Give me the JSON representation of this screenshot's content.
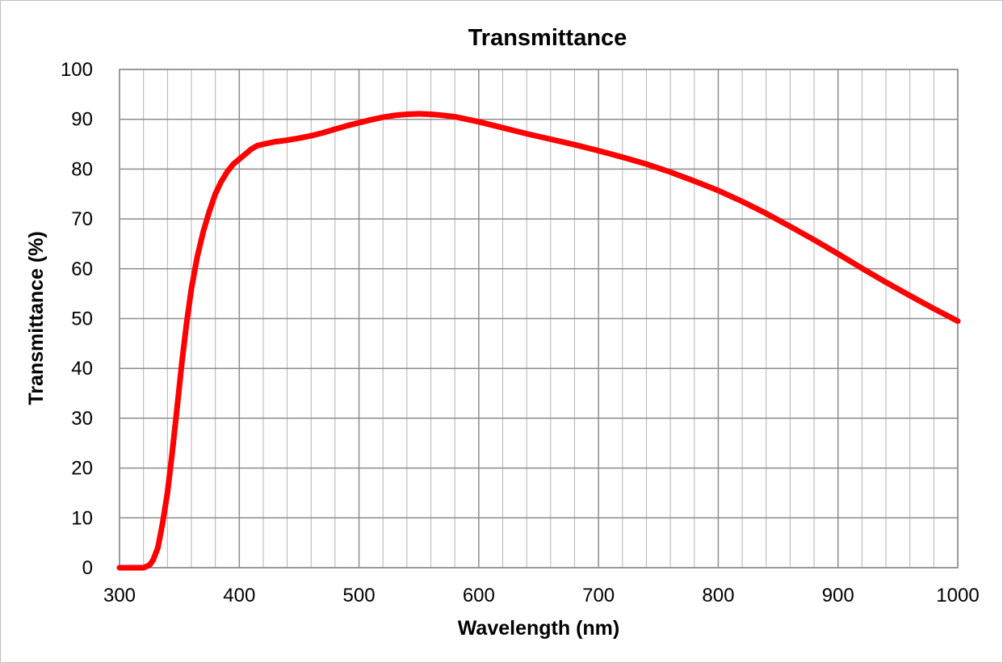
{
  "chart_data": {
    "type": "line",
    "title": "Transmittance",
    "xlabel": "Wavelength (nm)",
    "ylabel": "Transmittance (%)",
    "xlim": [
      300,
      1000
    ],
    "ylim": [
      0,
      100
    ],
    "x_major_ticks": [
      300,
      400,
      500,
      600,
      700,
      800,
      900,
      1000
    ],
    "x_tick_labels": [
      "300",
      "400",
      "500",
      "600",
      "700",
      "800",
      "900",
      "1000"
    ],
    "y_major_ticks": [
      0,
      10,
      20,
      30,
      40,
      50,
      60,
      70,
      80,
      90,
      100
    ],
    "y_tick_labels": [
      "0",
      "10",
      "20",
      "30",
      "40",
      "50",
      "60",
      "70",
      "80",
      "90",
      "100"
    ],
    "x_minor_step": 20,
    "grid": true,
    "legend": "none",
    "series": [
      {
        "color": "#ff0000",
        "x": [
          300,
          310,
          320,
          325,
          328,
          332,
          336,
          340,
          344,
          348,
          352,
          356,
          360,
          365,
          370,
          375,
          380,
          385,
          390,
          395,
          400,
          405,
          410,
          415,
          420,
          430,
          440,
          450,
          460,
          470,
          480,
          490,
          500,
          510,
          520,
          530,
          540,
          550,
          560,
          570,
          580,
          600,
          620,
          640,
          660,
          680,
          700,
          720,
          740,
          760,
          780,
          800,
          820,
          840,
          860,
          880,
          900,
          920,
          940,
          960,
          980,
          1000
        ],
        "y": [
          0,
          0,
          0,
          0.5,
          1.5,
          4,
          9,
          15,
          23,
          32,
          41,
          49,
          56,
          62.5,
          67.5,
          71.5,
          75,
          77.5,
          79.5,
          81,
          82,
          83,
          84,
          84.7,
          85,
          85.5,
          85.8,
          86.2,
          86.7,
          87.3,
          88,
          88.7,
          89.3,
          89.9,
          90.4,
          90.8,
          91,
          91.1,
          91,
          90.8,
          90.5,
          89.5,
          88.3,
          87.1,
          86,
          84.9,
          83.7,
          82.4,
          81,
          79.4,
          77.6,
          75.7,
          73.5,
          71.1,
          68.5,
          65.8,
          63,
          60.1,
          57.3,
          54.6,
          52,
          49.5
        ]
      }
    ]
  }
}
